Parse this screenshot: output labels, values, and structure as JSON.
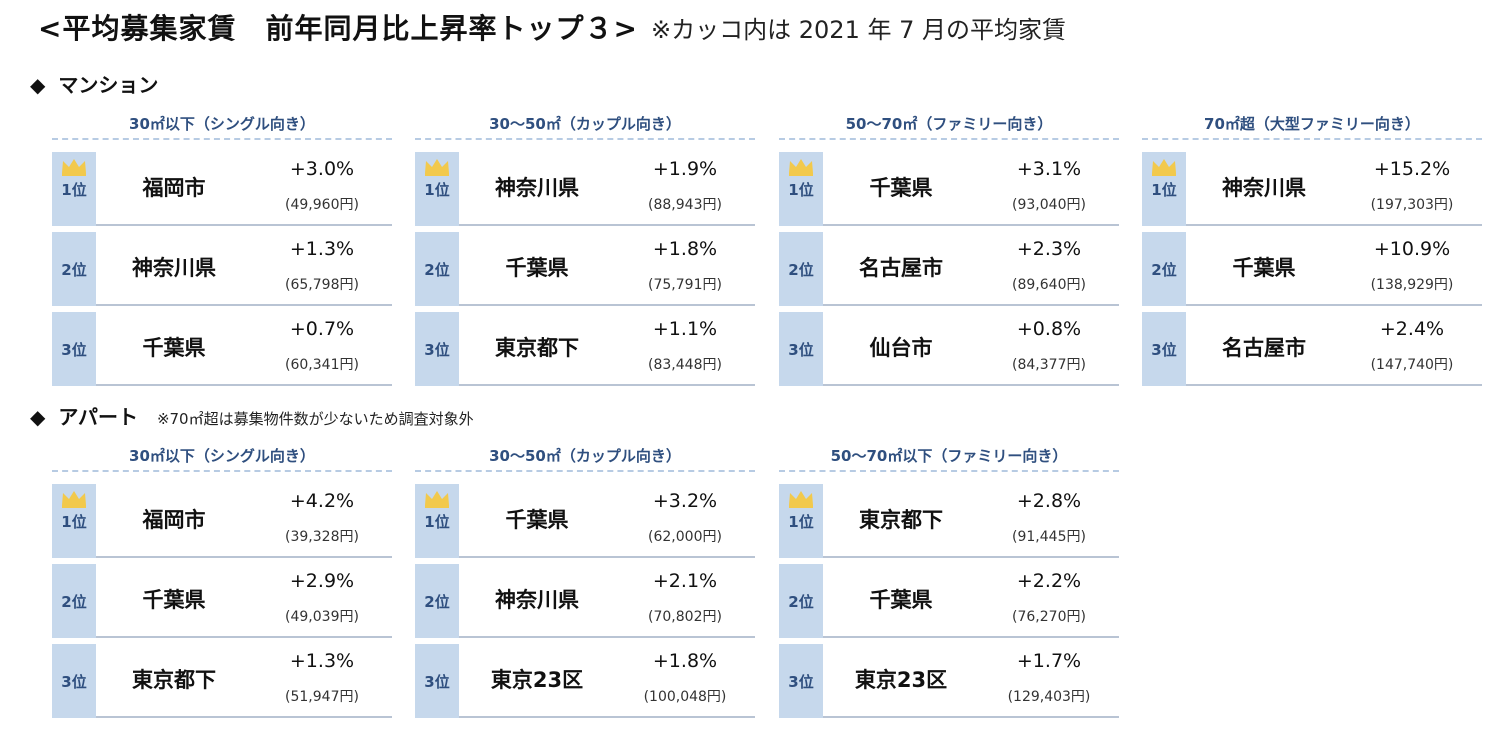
{
  "header": {
    "title": "<平均募集家賃　前年同月比上昇率トップ３>",
    "note": "※カッコ内は 2021 年 7 月の平均家賃"
  },
  "mansion": {
    "label": "マンション",
    "groups": [
      {
        "title": "30㎡以下（シングル向き）",
        "rows": [
          {
            "rank": "1位",
            "region": "福岡市",
            "rate": "+3.0%",
            "rent": "(49,960円)"
          },
          {
            "rank": "2位",
            "region": "神奈川県",
            "rate": "+1.3%",
            "rent": "(65,798円)"
          },
          {
            "rank": "3位",
            "region": "千葉県",
            "rate": "+0.7%",
            "rent": "(60,341円)"
          }
        ]
      },
      {
        "title": "30～50㎡（カップル向き）",
        "rows": [
          {
            "rank": "1位",
            "region": "神奈川県",
            "rate": "+1.9%",
            "rent": "(88,943円)"
          },
          {
            "rank": "2位",
            "region": "千葉県",
            "rate": "+1.8%",
            "rent": "(75,791円)"
          },
          {
            "rank": "3位",
            "region": "東京都下",
            "rate": "+1.1%",
            "rent": "(83,448円)"
          }
        ]
      },
      {
        "title": "50～70㎡（ファミリー向き）",
        "rows": [
          {
            "rank": "1位",
            "region": "千葉県",
            "rate": "+3.1%",
            "rent": "(93,040円)"
          },
          {
            "rank": "2位",
            "region": "名古屋市",
            "rate": "+2.3%",
            "rent": "(89,640円)"
          },
          {
            "rank": "3位",
            "region": "仙台市",
            "rate": "+0.8%",
            "rent": "(84,377円)"
          }
        ]
      },
      {
        "title": "70㎡超（大型ファミリー向き）",
        "rows": [
          {
            "rank": "1位",
            "region": "神奈川県",
            "rate": "+15.2%",
            "rent": "(197,303円)"
          },
          {
            "rank": "2位",
            "region": "千葉県",
            "rate": "+10.9%",
            "rent": "(138,929円)"
          },
          {
            "rank": "3位",
            "region": "名古屋市",
            "rate": "+2.4%",
            "rent": "(147,740円)"
          }
        ]
      }
    ]
  },
  "apart": {
    "label": "アパート",
    "note": "※70㎡超は募集物件数が少ないため調査対象外",
    "groups": [
      {
        "title": "30㎡以下（シングル向き）",
        "rows": [
          {
            "rank": "1位",
            "region": "福岡市",
            "rate": "+4.2%",
            "rent": "(39,328円)"
          },
          {
            "rank": "2位",
            "region": "千葉県",
            "rate": "+2.9%",
            "rent": "(49,039円)"
          },
          {
            "rank": "3位",
            "region": "東京都下",
            "rate": "+1.3%",
            "rent": "(51,947円)"
          }
        ]
      },
      {
        "title": "30～50㎡（カップル向き）",
        "rows": [
          {
            "rank": "1位",
            "region": "千葉県",
            "rate": "+3.2%",
            "rent": "(62,000円)"
          },
          {
            "rank": "2位",
            "region": "神奈川県",
            "rate": "+2.1%",
            "rent": "(70,802円)"
          },
          {
            "rank": "3位",
            "region": "東京23区",
            "rate": "+1.8%",
            "rent": "(100,048円)"
          }
        ]
      },
      {
        "title": "50～70㎡以下（ファミリー向き）",
        "rows": [
          {
            "rank": "1位",
            "region": "東京都下",
            "rate": "+2.8%",
            "rent": "(91,445円)"
          },
          {
            "rank": "2位",
            "region": "千葉県",
            "rate": "+2.2%",
            "rent": "(76,270円)"
          },
          {
            "rank": "3位",
            "region": "東京23区",
            "rate": "+1.7%",
            "rent": "(129,403円)"
          }
        ]
      }
    ]
  },
  "colors": {
    "rank_bg": "#c6d8ec",
    "rank_text": "#2f4f7f",
    "crown": "#f2c94c",
    "divider": "#b9c4d4"
  },
  "icons": {
    "crown": "crown-icon",
    "section_marker": "diamond-icon"
  }
}
